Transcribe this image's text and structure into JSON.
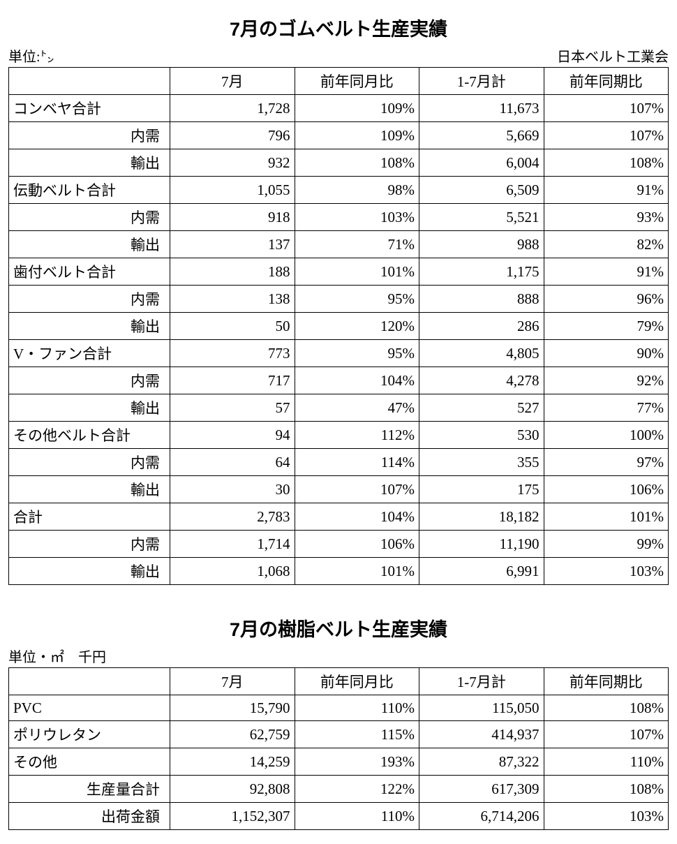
{
  "section1": {
    "title": "7月のゴムベルト生産実績",
    "unit": "単位:㌧",
    "source": "日本ベルト工業会",
    "columns": [
      "",
      "7月",
      "前年同月比",
      "1-7月計",
      "前年同期比"
    ],
    "rows": [
      {
        "label": "コンベヤ合計",
        "align": "left",
        "v": [
          "1,728",
          "109%",
          "11,673",
          "107%"
        ]
      },
      {
        "label": "内需",
        "align": "indent",
        "v": [
          "796",
          "109%",
          "5,669",
          "107%"
        ]
      },
      {
        "label": "輸出",
        "align": "indent",
        "v": [
          "932",
          "108%",
          "6,004",
          "108%"
        ]
      },
      {
        "label": "伝動ベルト合計",
        "align": "left",
        "v": [
          "1,055",
          "98%",
          "6,509",
          "91%"
        ]
      },
      {
        "label": "内需",
        "align": "indent",
        "v": [
          "918",
          "103%",
          "5,521",
          "93%"
        ]
      },
      {
        "label": "輸出",
        "align": "indent",
        "v": [
          "137",
          "71%",
          "988",
          "82%"
        ]
      },
      {
        "label": "歯付ベルト合計",
        "align": "left",
        "v": [
          "188",
          "101%",
          "1,175",
          "91%"
        ]
      },
      {
        "label": "内需",
        "align": "indent",
        "v": [
          "138",
          "95%",
          "888",
          "96%"
        ]
      },
      {
        "label": "輸出",
        "align": "indent",
        "v": [
          "50",
          "120%",
          "286",
          "79%"
        ]
      },
      {
        "label": "V・ファン合計",
        "align": "left",
        "v": [
          "773",
          "95%",
          "4,805",
          "90%"
        ]
      },
      {
        "label": "内需",
        "align": "indent",
        "v": [
          "717",
          "104%",
          "4,278",
          "92%"
        ]
      },
      {
        "label": "輸出",
        "align": "indent",
        "v": [
          "57",
          "47%",
          "527",
          "77%"
        ]
      },
      {
        "label": "その他ベルト合計",
        "align": "left",
        "v": [
          "94",
          "112%",
          "530",
          "100%"
        ]
      },
      {
        "label": "内需",
        "align": "indent",
        "v": [
          "64",
          "114%",
          "355",
          "97%"
        ]
      },
      {
        "label": "輸出",
        "align": "indent",
        "v": [
          "30",
          "107%",
          "175",
          "106%"
        ]
      },
      {
        "label": "合計",
        "align": "left",
        "v": [
          "2,783",
          "104%",
          "18,182",
          "101%"
        ]
      },
      {
        "label": "内需",
        "align": "indent",
        "v": [
          "1,714",
          "106%",
          "11,190",
          "99%"
        ]
      },
      {
        "label": "輸出",
        "align": "indent",
        "v": [
          "1,068",
          "101%",
          "6,991",
          "103%"
        ]
      }
    ]
  },
  "section2": {
    "title": "7月の樹脂ベルト生産実績",
    "unit": "単位・㎡　千円",
    "columns": [
      "",
      "7月",
      "前年同月比",
      "1-7月計",
      "前年同期比"
    ],
    "rows": [
      {
        "label": "PVC",
        "align": "left",
        "v": [
          "15,790",
          "110%",
          "115,050",
          "108%"
        ]
      },
      {
        "label": "ポリウレタン",
        "align": "left",
        "v": [
          "62,759",
          "115%",
          "414,937",
          "107%"
        ]
      },
      {
        "label": "その他",
        "align": "left",
        "v": [
          "14,259",
          "193%",
          "87,322",
          "110%"
        ]
      },
      {
        "label": "生産量合計",
        "align": "indent",
        "v": [
          "92,808",
          "122%",
          "617,309",
          "108%"
        ]
      },
      {
        "label": "出荷金額",
        "align": "indent",
        "v": [
          "1,152,307",
          "110%",
          "6,714,206",
          "103%"
        ]
      }
    ]
  },
  "style": {
    "text_color": "#000000",
    "background_color": "#ffffff",
    "border_color": "#000000",
    "title_fontsize": 27,
    "body_fontsize": 21
  }
}
